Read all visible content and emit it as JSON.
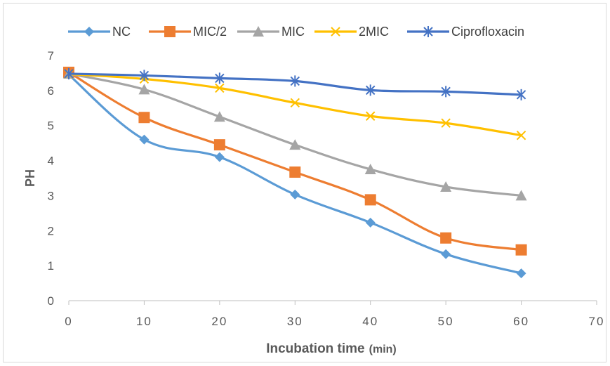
{
  "chart_data": {
    "type": "line",
    "title": "",
    "xlabel": "Incubation time",
    "xlabel_unit": "(min)",
    "ylabel": "PH",
    "xlim": [
      0,
      70
    ],
    "ylim": [
      0,
      7
    ],
    "xticks": [
      0,
      10,
      20,
      30,
      40,
      50,
      60,
      70
    ],
    "yticks": [
      0,
      1,
      2,
      3,
      4,
      5,
      6,
      7
    ],
    "grid": false,
    "legend_position": "top",
    "x": [
      0,
      10,
      20,
      30,
      40,
      50,
      60
    ],
    "series": [
      {
        "name": "NC",
        "color": "#5b9bd5",
        "marker": "diamond",
        "values": [
          6.45,
          4.6,
          4.1,
          3.03,
          2.23,
          1.33,
          0.78
        ]
      },
      {
        "name": "MIC/2",
        "color": "#ed7d31",
        "marker": "square",
        "values": [
          6.52,
          5.23,
          4.45,
          3.67,
          2.88,
          1.79,
          1.45
        ]
      },
      {
        "name": "MIC",
        "color": "#a5a5a5",
        "marker": "triangle",
        "values": [
          6.48,
          6.03,
          5.25,
          4.45,
          3.75,
          3.25,
          3.0
        ]
      },
      {
        "name": "2MIC",
        "color": "#ffc000",
        "marker": "x",
        "values": [
          6.47,
          6.33,
          6.07,
          5.65,
          5.27,
          5.07,
          4.72
        ]
      },
      {
        "name": "Ciprofloxacin",
        "color": "#4472c4",
        "marker": "star",
        "values": [
          6.48,
          6.43,
          6.35,
          6.27,
          6.01,
          5.97,
          5.88
        ]
      }
    ]
  }
}
